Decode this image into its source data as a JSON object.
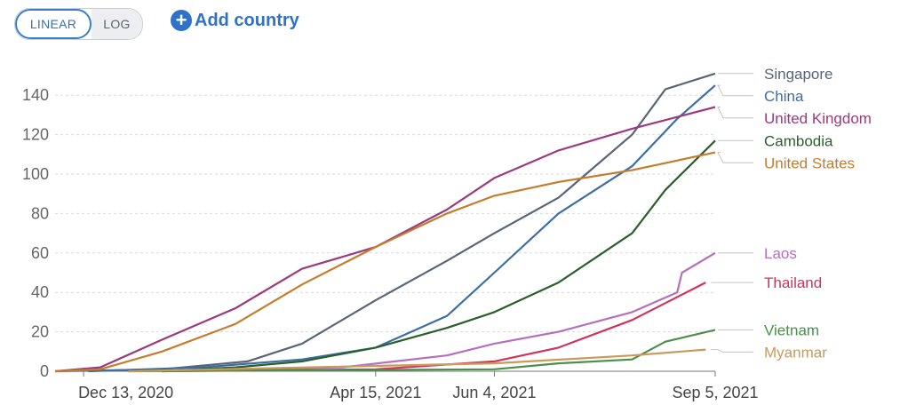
{
  "controls": {
    "scale_options": [
      "LINEAR",
      "LOG"
    ],
    "selected_scale": "LINEAR",
    "add_label": "Add country"
  },
  "chart_data": {
    "type": "line",
    "ylim": [
      0,
      150
    ],
    "yticks": [
      0,
      20,
      40,
      60,
      80,
      100,
      120,
      140
    ],
    "x_range": [
      "2020-12-01",
      "2021-09-05"
    ],
    "x_tick_labels": [
      {
        "date": "2020-12-13",
        "label": "Dec 13, 2020"
      },
      {
        "date": "2021-04-15",
        "label": "Apr 15, 2021"
      },
      {
        "date": "2021-06-04",
        "label": "Jun 4, 2021"
      },
      {
        "date": "2021-09-05",
        "label": "Sep 5, 2021"
      }
    ],
    "grid": true,
    "legend": "right, labels at line ends",
    "series": [
      {
        "name": "Singapore",
        "color": "#5a6477",
        "points": [
          [
            "2020-12-01",
            0
          ],
          [
            "2021-01-15",
            1
          ],
          [
            "2021-02-20",
            5
          ],
          [
            "2021-03-15",
            14
          ],
          [
            "2021-04-15",
            36
          ],
          [
            "2021-05-15",
            56
          ],
          [
            "2021-06-04",
            70
          ],
          [
            "2021-07-01",
            88
          ],
          [
            "2021-08-01",
            120
          ],
          [
            "2021-08-15",
            143
          ],
          [
            "2021-09-05",
            151
          ]
        ]
      },
      {
        "name": "China",
        "color": "#3d6ea3",
        "points": [
          [
            "2020-12-15",
            0
          ],
          [
            "2021-02-01",
            2
          ],
          [
            "2021-03-15",
            6
          ],
          [
            "2021-04-15",
            12
          ],
          [
            "2021-05-15",
            28
          ],
          [
            "2021-06-04",
            50
          ],
          [
            "2021-07-01",
            80
          ],
          [
            "2021-08-01",
            104
          ],
          [
            "2021-08-20",
            128
          ],
          [
            "2021-09-05",
            145
          ]
        ]
      },
      {
        "name": "United Kingdom",
        "color": "#9b3a7c",
        "points": [
          [
            "2020-12-01",
            0
          ],
          [
            "2020-12-20",
            2
          ],
          [
            "2021-01-15",
            16
          ],
          [
            "2021-02-15",
            32
          ],
          [
            "2021-03-15",
            52
          ],
          [
            "2021-04-15",
            63
          ],
          [
            "2021-05-15",
            82
          ],
          [
            "2021-06-04",
            98
          ],
          [
            "2021-07-01",
            112
          ],
          [
            "2021-08-01",
            123
          ],
          [
            "2021-09-05",
            134
          ]
        ]
      },
      {
        "name": "Cambodia",
        "color": "#2a5e2a",
        "points": [
          [
            "2021-01-15",
            0
          ],
          [
            "2021-02-15",
            2
          ],
          [
            "2021-03-15",
            5
          ],
          [
            "2021-04-15",
            12
          ],
          [
            "2021-05-15",
            22
          ],
          [
            "2021-06-04",
            30
          ],
          [
            "2021-07-01",
            45
          ],
          [
            "2021-08-01",
            70
          ],
          [
            "2021-08-15",
            92
          ],
          [
            "2021-09-05",
            117
          ]
        ]
      },
      {
        "name": "United States",
        "color": "#c47d2c",
        "points": [
          [
            "2020-12-01",
            0
          ],
          [
            "2020-12-20",
            1
          ],
          [
            "2021-01-15",
            10
          ],
          [
            "2021-02-15",
            24
          ],
          [
            "2021-03-15",
            44
          ],
          [
            "2021-04-15",
            63
          ],
          [
            "2021-05-15",
            80
          ],
          [
            "2021-06-04",
            89
          ],
          [
            "2021-07-01",
            96
          ],
          [
            "2021-08-01",
            102
          ],
          [
            "2021-09-05",
            111
          ]
        ]
      },
      {
        "name": "Laos",
        "color": "#b56fbd",
        "points": [
          [
            "2021-01-15",
            0
          ],
          [
            "2021-04-01",
            2
          ],
          [
            "2021-05-15",
            8
          ],
          [
            "2021-06-04",
            14
          ],
          [
            "2021-07-01",
            20
          ],
          [
            "2021-08-01",
            30
          ],
          [
            "2021-08-20",
            40
          ],
          [
            "2021-08-22",
            50
          ],
          [
            "2021-09-05",
            60
          ]
        ]
      },
      {
        "name": "Thailand",
        "color": "#d1335a",
        "points": [
          [
            "2021-01-15",
            0
          ],
          [
            "2021-04-15",
            1
          ],
          [
            "2021-06-04",
            5
          ],
          [
            "2021-07-01",
            12
          ],
          [
            "2021-08-01",
            26
          ],
          [
            "2021-09-01",
            45
          ]
        ]
      },
      {
        "name": "Vietnam",
        "color": "#4b8f4b",
        "points": [
          [
            "2021-01-01",
            0
          ],
          [
            "2021-06-04",
            1
          ],
          [
            "2021-07-01",
            4
          ],
          [
            "2021-08-01",
            6
          ],
          [
            "2021-08-15",
            15
          ],
          [
            "2021-09-05",
            21
          ]
        ]
      },
      {
        "name": "Myanmar",
        "color": "#c99a5b",
        "points": [
          [
            "2021-01-01",
            0
          ],
          [
            "2021-06-04",
            4
          ],
          [
            "2021-08-01",
            8
          ],
          [
            "2021-09-01",
            11
          ]
        ]
      }
    ]
  }
}
